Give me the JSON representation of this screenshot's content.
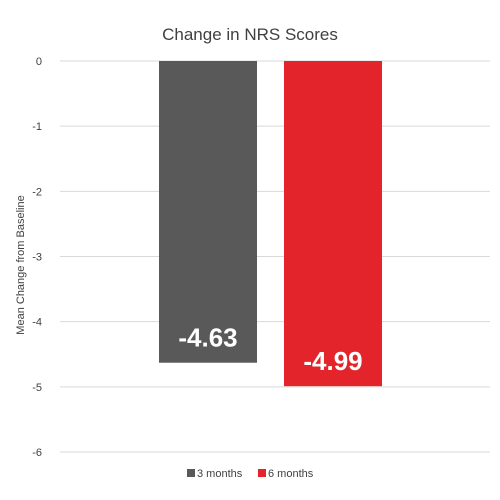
{
  "chart_data": {
    "type": "bar",
    "title": "Change in NRS Scores",
    "xlabel": "",
    "ylabel": "Mean Change from Baseline",
    "ylim": [
      -6,
      0
    ],
    "yticks": [
      0,
      -1,
      -2,
      -3,
      -4,
      -5,
      -6
    ],
    "grid": true,
    "legend_position": "bottom",
    "series": [
      {
        "name": "3 months",
        "value": -4.63,
        "label": "-4.63",
        "color": "#595959"
      },
      {
        "name": "6 months",
        "value": -4.99,
        "label": "-4.99",
        "color": "#e3242b"
      }
    ]
  }
}
